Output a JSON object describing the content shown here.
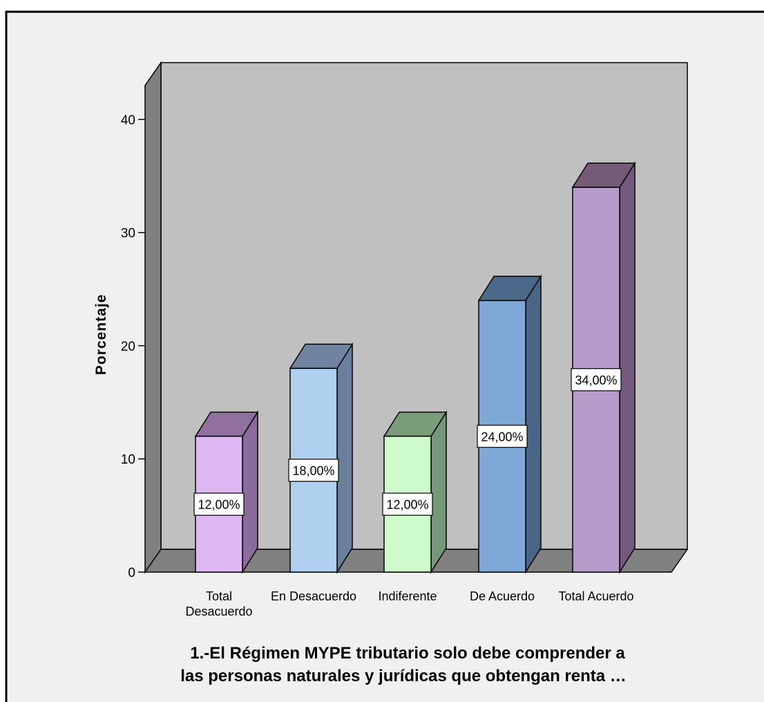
{
  "chart_data": {
    "type": "bar",
    "title": "",
    "xlabel": "1.-El Régimen MYPE tributario solo debe comprender a las personas naturales y jurídicas que obtengan renta …",
    "xlabel_lines": [
      "1.-El Régimen MYPE tributario solo debe comprender a",
      "las personas naturales y jurídicas que obtengan renta …"
    ],
    "ylabel": "Porcentaje",
    "ylim": [
      0,
      43
    ],
    "yticks": [
      0,
      10,
      20,
      30,
      40
    ],
    "grid": false,
    "legend": "none",
    "three_d": true,
    "categories": [
      [
        "Total",
        "Desacuerdo"
      ],
      [
        "En Desacuerdo"
      ],
      [
        "Indiferente"
      ],
      [
        "De Acuerdo"
      ],
      [
        "Total Acuerdo"
      ]
    ],
    "values": [
      12,
      18,
      12,
      24,
      34
    ],
    "data_labels": [
      "12,00%",
      "18,00%",
      "12,00%",
      "24,00%",
      "34,00%"
    ],
    "colors": {
      "front": [
        "#ddb8f3",
        "#b0d0ef",
        "#cdfbcc",
        "#7ea9d6",
        "#b79bcb"
      ],
      "side": [
        "#8b6a9c",
        "#6a7f99",
        "#74987a",
        "#4a6685",
        "#735a7e"
      ],
      "top": [
        "#8f709f",
        "#6e84a0",
        "#7a9c78",
        "#4b6989",
        "#755b78"
      ],
      "wall_back": "#c0c0c0",
      "wall_side": "#808080",
      "floor": "#808080"
    }
  }
}
